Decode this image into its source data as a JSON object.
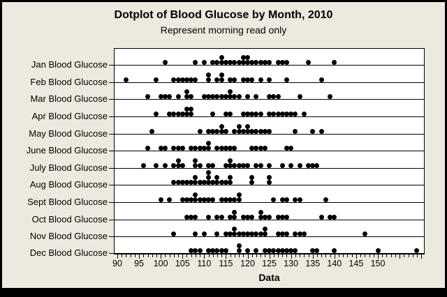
{
  "window": {
    "frame_bg": "#EDE9DE",
    "plot_bg": "#FFFFFF",
    "border_color": "#000000"
  },
  "chart_data": {
    "type": "scatter",
    "variant": "dotplot",
    "title": "Dotplot of Blood Glucose by Month, 2010",
    "subtitle": "Represent morning read only",
    "xlabel": "Data",
    "legend": "none",
    "grid": "off",
    "dot_color": "#000000",
    "x_axis_range": [
      89.2,
      160.8
    ],
    "x_tick_labels": [
      "90",
      "95",
      "100",
      "105",
      "110",
      "115",
      "120",
      "125",
      "130",
      "135",
      "140",
      "145",
      "150"
    ],
    "x_major_tick_values": [
      90,
      95,
      100,
      105,
      110,
      115,
      120,
      125,
      130,
      135,
      140,
      145,
      150,
      155,
      160
    ],
    "x_minor_tick_step": 1,
    "categories": [
      "Jan Blood Glucose",
      "Feb Blood Glucose",
      "Mar Blood Glucose",
      "Apr Blood Glucose",
      "May Blood Glucose",
      "June Blood Glucose",
      "July Blood Glucose",
      "Aug Blood Glucose",
      "Sept Blood Glucose",
      "Oct Blood Glucose",
      "Nov Blood Glucose",
      "Dec Blood Glucose"
    ],
    "series": [
      {
        "name": "Jan Blood Glucose",
        "values": [
          101,
          108,
          110,
          112,
          113,
          114,
          114,
          115,
          116,
          117,
          118,
          119,
          119,
          120,
          120,
          121,
          122,
          123,
          124,
          125,
          127,
          128,
          129,
          134,
          140
        ]
      },
      {
        "name": "Feb Blood Glucose",
        "values": [
          92,
          99,
          103,
          104,
          105,
          106,
          107,
          108,
          111,
          111,
          113,
          114,
          114,
          116,
          117,
          119,
          120,
          121,
          123,
          125,
          129,
          137
        ]
      },
      {
        "name": "Mar Blood Glucose",
        "values": [
          97,
          100,
          101,
          102,
          104,
          106,
          106,
          107,
          110,
          111,
          112,
          113,
          114,
          115,
          116,
          116,
          117,
          118,
          120,
          122,
          125,
          126,
          127,
          132,
          139
        ]
      },
      {
        "name": "Apr Blood Glucose",
        "values": [
          99,
          102,
          103,
          104,
          105,
          106,
          106,
          107,
          107,
          112,
          115,
          116,
          119,
          120,
          121,
          122,
          123,
          125,
          126,
          127,
          128,
          129,
          130,
          131,
          133
        ]
      },
      {
        "name": "May Blood Glucose",
        "values": [
          98,
          109,
          111,
          112,
          113,
          114,
          114,
          115,
          117,
          118,
          118,
          119,
          120,
          120,
          121,
          122,
          123,
          124,
          125,
          131,
          135,
          137
        ]
      },
      {
        "name": "June Blood Glucose",
        "values": [
          97,
          100,
          101,
          103,
          104,
          105,
          107,
          108,
          109,
          110,
          111,
          111,
          113,
          114,
          115,
          116,
          117,
          121,
          122,
          123,
          124,
          129,
          130
        ]
      },
      {
        "name": "July Blood Glucose",
        "values": [
          96,
          99,
          101,
          103,
          104,
          104,
          105,
          108,
          108,
          109,
          111,
          112,
          115,
          116,
          116,
          117,
          118,
          119,
          120,
          122,
          123,
          125,
          128,
          130,
          132,
          134,
          135,
          136
        ]
      },
      {
        "name": "Aug Blood Glucose",
        "values": [
          103,
          104,
          105,
          106,
          107,
          108,
          108,
          109,
          110,
          111,
          111,
          111,
          112,
          113,
          113,
          114,
          115,
          116,
          116,
          121,
          121,
          125,
          125
        ]
      },
      {
        "name": "Sept Blood Glucose",
        "values": [
          100,
          102,
          105,
          106,
          107,
          108,
          108,
          109,
          110,
          111,
          112,
          114,
          115,
          116,
          117,
          118,
          118,
          126,
          128,
          129,
          131,
          132,
          138
        ]
      },
      {
        "name": "Oct Blood Glucose",
        "values": [
          106,
          107,
          108,
          111,
          113,
          114,
          116,
          117,
          117,
          119,
          120,
          121,
          123,
          123,
          124,
          125,
          127,
          128,
          129,
          137,
          139,
          140
        ]
      },
      {
        "name": "Nov Blood Glucose",
        "values": [
          103,
          108,
          110,
          113,
          115,
          116,
          117,
          117,
          118,
          119,
          120,
          121,
          122,
          123,
          124,
          124,
          127,
          128,
          129,
          131,
          132,
          133,
          147
        ]
      },
      {
        "name": "Dec Blood Glucose",
        "values": [
          107,
          108,
          109,
          111,
          112,
          113,
          114,
          115,
          118,
          118,
          120,
          122,
          124,
          125,
          126,
          127,
          128,
          129,
          130,
          131,
          135,
          136,
          140,
          150,
          159
        ]
      }
    ]
  }
}
